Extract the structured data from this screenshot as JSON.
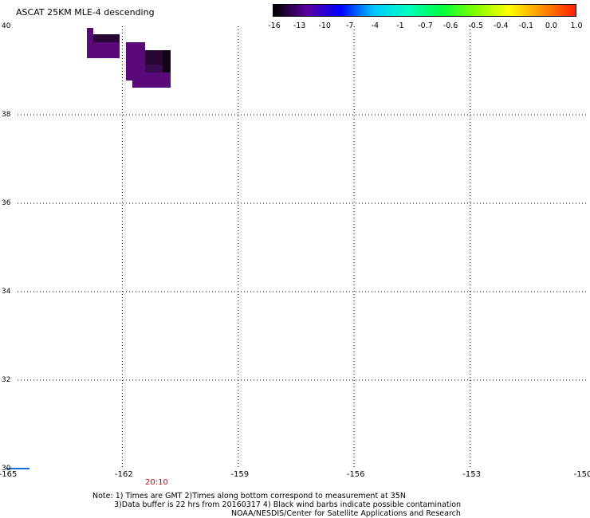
{
  "title": "ASCAT 25KM MLE-4 descending",
  "colorbar": {
    "labels": [
      "-16",
      "-13",
      "-10",
      "-7",
      "-4",
      "-1",
      "-0.7",
      "-0.6",
      "-0.5",
      "-0.4",
      "-0.1",
      "0.0",
      "1.0"
    ],
    "colors": [
      "#000000",
      "#5a00a0",
      "#0000ff",
      "#00c8ff",
      "#00ffc0",
      "#00ff40",
      "#80ff00",
      "#ffff00",
      "#ff9000",
      "#ff2000"
    ]
  },
  "map": {
    "lon_ticks": [
      "-165",
      "-162",
      "-159",
      "-156",
      "-153",
      "-150"
    ],
    "lat_ticks": [
      "40",
      "38",
      "36",
      "34",
      "32",
      "30"
    ],
    "lon_range": [
      -165,
      -150
    ],
    "lat_range": [
      30,
      40
    ],
    "data_color": "#5a0a78",
    "dark_color": "#2a0636"
  },
  "time_label": "20:10",
  "notes": {
    "line1": "Note: 1) Times are GMT 2)Times along bottom correspond to measurement at 35N",
    "line2": "3)Data buffer is 22 hrs from 20160317 4) Black wind barbs indicate possible contamination",
    "credit": "NOAA/NESDIS/Center for Satellite Applications and Research"
  }
}
